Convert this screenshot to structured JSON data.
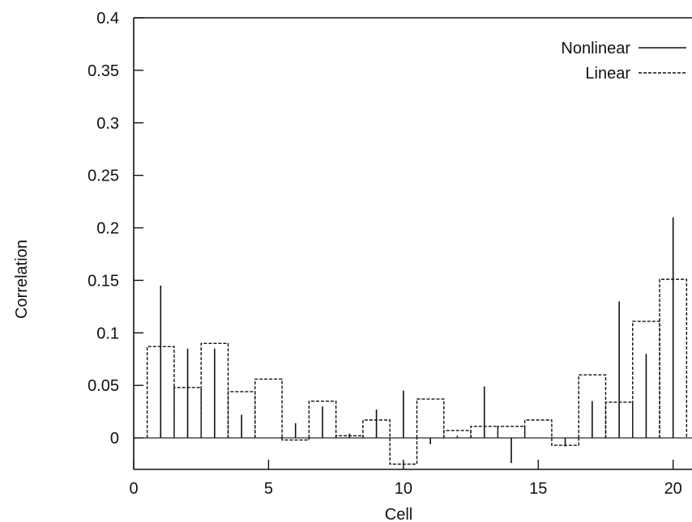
{
  "chart_data": {
    "type": "bar",
    "xlabel": "Cell",
    "ylabel": "Correlation",
    "xlim": [
      0,
      20.7
    ],
    "ylim": [
      -0.03,
      0.4
    ],
    "xticks": [
      0,
      5,
      10,
      15,
      20
    ],
    "yticks": [
      0,
      0.05,
      0.1,
      0.15,
      0.2,
      0.25,
      0.3,
      0.35,
      0.4
    ],
    "ytick_labels": [
      "0",
      "0.05",
      "0.1",
      "0.15",
      "0.2",
      "0.25",
      "0.3",
      "0.35",
      "0.4"
    ],
    "xtick_labels": [
      "0",
      "5",
      "10",
      "15",
      "20"
    ],
    "grid": false,
    "legend_position": "top-right",
    "x": [
      1,
      2,
      3,
      4,
      5,
      6,
      7,
      8,
      9,
      10,
      11,
      12,
      13,
      14,
      15,
      16,
      17,
      18,
      19,
      20
    ],
    "series": [
      {
        "name": "Nonlinear",
        "style": "solid impulses",
        "values": [
          0.145,
          0.085,
          0.085,
          0.022,
          0.0,
          0.014,
          0.03,
          0.004,
          0.027,
          0.045,
          -0.006,
          0.002,
          0.049,
          -0.024,
          0.0,
          -0.008,
          0.035,
          0.13,
          0.08,
          0.21
        ]
      },
      {
        "name": "Linear",
        "style": "dashed steps",
        "values": [
          0.087,
          0.048,
          0.09,
          0.044,
          0.056,
          -0.002,
          0.035,
          0.002,
          0.017,
          -0.025,
          0.037,
          0.007,
          0.011,
          0.011,
          0.017,
          -0.007,
          0.06,
          0.034,
          0.111,
          0.151
        ]
      }
    ]
  }
}
